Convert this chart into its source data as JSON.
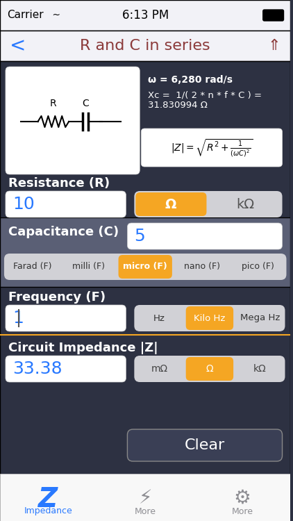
{
  "bg_dark": "#2d3142",
  "bg_medium": "#3a3f55",
  "bg_light": "#f2f2f7",
  "bg_gray": "#8e8e93",
  "orange": "#f5a623",
  "white": "#ffffff",
  "blue_text": "#2979ff",
  "red_title": "#a0522d",
  "title": "R and C in series",
  "status_time": "6:13 PM",
  "status_carrier": "Carrier",
  "omega_text": "ω = 6,280 rad/s",
  "xc_text": "Xc =  1/( 2 * n * f * C ) =\n31.830994 Ω",
  "formula_text": "|Z| = √(R² + 1/((ωC)²))",
  "resistance_label": "Resistance (R)",
  "resistance_value": "10",
  "resistance_units": [
    "Ω",
    "kΩ"
  ],
  "resistance_active": 0,
  "capacitance_label": "Capacitance (C)",
  "capacitance_value": "5",
  "cap_units": [
    "Farad (F)",
    "milli (F)",
    "micro (F)",
    "nano (F)",
    "pico (F)"
  ],
  "cap_active": 2,
  "frequency_label": "Frequency (F)",
  "frequency_value": "1",
  "freq_units": [
    "Hz",
    "Kilo Hz",
    "Mega Hz"
  ],
  "freq_active": 1,
  "impedance_label": "Circuit Impedance |Z|",
  "impedance_value": "33.38",
  "imp_units": [
    "mΩ",
    "Ω",
    "kΩ"
  ],
  "imp_active": 1,
  "clear_text": "Clear",
  "tab1": "Impedance",
  "tab2": "More",
  "tab3": "More"
}
